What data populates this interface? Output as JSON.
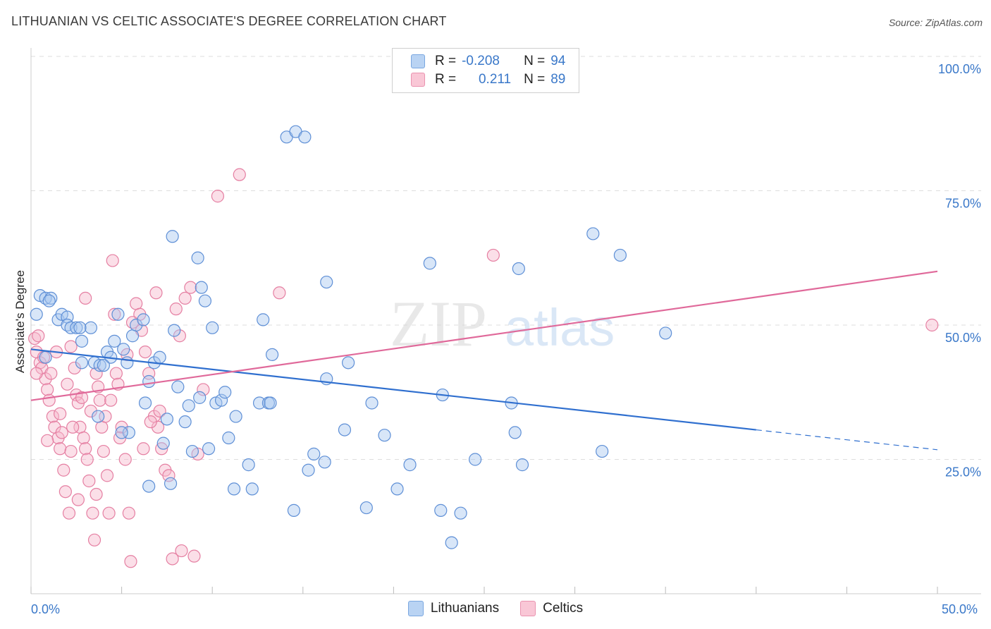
{
  "title": "LITHUANIAN VS CELTIC ASSOCIATE'S DEGREE CORRELATION CHART",
  "source": "Source: ZipAtlas.com",
  "watermark": {
    "zip": "ZIP",
    "atlas": "atlas"
  },
  "legend": {
    "rows": [
      {
        "r_label": "R =",
        "r_value": "-0.208",
        "n_label": "N =",
        "n_value": "94"
      },
      {
        "r_label": "R =",
        "r_value": "0.211",
        "n_label": "N =",
        "n_value": "89"
      }
    ]
  },
  "bottom_legend": {
    "series1": "Lithuanians",
    "series2": "Celtics"
  },
  "colors": {
    "blue_fill": "#a9c8f0",
    "blue_stroke": "#5e8fd6",
    "blue_line": "#2f6fcf",
    "pink_fill": "#f7b8cc",
    "pink_stroke": "#e57fa2",
    "pink_line": "#e0699a",
    "accent": "#3a78c9"
  },
  "chart_data": {
    "type": "scatter",
    "title": "LITHUANIAN VS CELTIC ASSOCIATE'S DEGREE CORRELATION CHART",
    "xlabel": "",
    "ylabel": "Associate's Degree",
    "xlim": [
      0,
      50
    ],
    "ylim": [
      0,
      100
    ],
    "x_tick_labels": [
      "0.0%",
      "50.0%"
    ],
    "y_tick_labels": [
      "100.0%",
      "75.0%",
      "50.0%",
      "25.0%"
    ],
    "y_ticks": [
      100,
      75,
      50,
      25
    ],
    "series": [
      {
        "name": "Lithuanians",
        "r": -0.208,
        "n": 94,
        "trend": {
          "x": [
            0,
            40,
            50
          ],
          "y": [
            45.5,
            30.5,
            26.8
          ],
          "solid_until": 40
        },
        "points": [
          [
            0.3,
            52
          ],
          [
            0.5,
            55.5
          ],
          [
            0.8,
            55
          ],
          [
            1.1,
            55
          ],
          [
            1.5,
            51
          ],
          [
            1.7,
            52
          ],
          [
            2,
            51.5
          ],
          [
            2,
            50
          ],
          [
            2.2,
            49.5
          ],
          [
            2.5,
            49.5
          ],
          [
            2.8,
            47
          ],
          [
            3.3,
            49.5
          ],
          [
            2.8,
            43
          ],
          [
            3.5,
            43
          ],
          [
            3.8,
            42.5
          ],
          [
            4.2,
            45
          ],
          [
            4.4,
            44
          ],
          [
            4.6,
            47
          ],
          [
            4.8,
            52
          ],
          [
            5.1,
            45.5
          ],
          [
            5.3,
            43
          ],
          [
            5.6,
            48
          ],
          [
            5.8,
            50
          ],
          [
            6.2,
            51
          ],
          [
            6.5,
            39.5
          ],
          [
            6.8,
            43
          ],
          [
            7.1,
            44
          ],
          [
            7.5,
            32.5
          ],
          [
            7.8,
            66.5
          ],
          [
            7.9,
            49
          ],
          [
            8.1,
            38.5
          ],
          [
            8.5,
            32
          ],
          [
            8.7,
            35
          ],
          [
            8.9,
            26.5
          ],
          [
            9.2,
            62.5
          ],
          [
            9.4,
            57
          ],
          [
            9.6,
            54.5
          ],
          [
            9.8,
            27
          ],
          [
            10,
            49.5
          ],
          [
            10.2,
            35.5
          ],
          [
            10.5,
            36
          ],
          [
            10.7,
            37.5
          ],
          [
            10.9,
            29
          ],
          [
            11.3,
            33
          ],
          [
            12,
            24
          ],
          [
            12.6,
            35.5
          ],
          [
            12.8,
            51
          ],
          [
            13.1,
            35.5
          ],
          [
            13.3,
            44.5
          ],
          [
            14.1,
            85
          ],
          [
            14.6,
            86
          ],
          [
            15.1,
            85
          ],
          [
            14.5,
            15.5
          ],
          [
            15.3,
            23
          ],
          [
            15.6,
            26
          ],
          [
            16.3,
            58
          ],
          [
            16.2,
            24.5
          ],
          [
            17.5,
            43
          ],
          [
            18.5,
            16
          ],
          [
            18.8,
            35.5
          ],
          [
            19.5,
            29.5
          ],
          [
            20.2,
            19.5
          ],
          [
            20.9,
            24
          ],
          [
            22,
            61.5
          ],
          [
            22.6,
            15.5
          ],
          [
            22.7,
            37
          ],
          [
            23.2,
            9.5
          ],
          [
            23.7,
            15
          ],
          [
            24.5,
            25
          ],
          [
            26.5,
            35.5
          ],
          [
            26.7,
            30
          ],
          [
            26.9,
            60.5
          ],
          [
            27.1,
            24
          ],
          [
            31,
            67
          ],
          [
            31.5,
            26.5
          ],
          [
            32.5,
            63
          ],
          [
            35,
            48.5
          ],
          [
            5.4,
            30
          ],
          [
            6.5,
            20
          ],
          [
            7.3,
            28
          ],
          [
            7.7,
            20.5
          ],
          [
            1,
            54.5
          ],
          [
            6.3,
            35.5
          ],
          [
            9.3,
            36.5
          ],
          [
            11.2,
            19.5
          ],
          [
            12.2,
            19.5
          ],
          [
            4,
            42.5
          ],
          [
            3.7,
            33
          ],
          [
            16.3,
            40
          ],
          [
            5,
            30
          ],
          [
            17.3,
            30.5
          ],
          [
            0.8,
            44
          ],
          [
            2.7,
            49.5
          ],
          [
            13.2,
            35.5
          ]
        ]
      },
      {
        "name": "Celtics",
        "r": 0.211,
        "n": 89,
        "trend": {
          "x": [
            0,
            50
          ],
          "y": [
            36,
            60
          ]
        },
        "points": [
          [
            0.2,
            47.5
          ],
          [
            0.3,
            45
          ],
          [
            0.5,
            43
          ],
          [
            0.6,
            42
          ],
          [
            0.8,
            40
          ],
          [
            0.9,
            38
          ],
          [
            1,
            36
          ],
          [
            1.2,
            33
          ],
          [
            1.3,
            31
          ],
          [
            1.5,
            29
          ],
          [
            1.6,
            27
          ],
          [
            1.8,
            23
          ],
          [
            1.9,
            19
          ],
          [
            2.1,
            15
          ],
          [
            2.2,
            46
          ],
          [
            2.4,
            42
          ],
          [
            2.5,
            37
          ],
          [
            2.6,
            35.5
          ],
          [
            2.7,
            31
          ],
          [
            2.9,
            29
          ],
          [
            3,
            27
          ],
          [
            3.1,
            25
          ],
          [
            3.2,
            21
          ],
          [
            3.4,
            15
          ],
          [
            3.5,
            10
          ],
          [
            3.6,
            41
          ],
          [
            3.7,
            38.5
          ],
          [
            3.8,
            36
          ],
          [
            3.9,
            31
          ],
          [
            4,
            26.5
          ],
          [
            4.2,
            22
          ],
          [
            4.3,
            15
          ],
          [
            4.5,
            62
          ],
          [
            4.7,
            41
          ],
          [
            4.8,
            39
          ],
          [
            5,
            31
          ],
          [
            5.2,
            25
          ],
          [
            5.4,
            15
          ],
          [
            5.5,
            6
          ],
          [
            5.8,
            54
          ],
          [
            6,
            52
          ],
          [
            6.1,
            49
          ],
          [
            6.3,
            45
          ],
          [
            6.5,
            41
          ],
          [
            6.8,
            33
          ],
          [
            7,
            31
          ],
          [
            7.2,
            27
          ],
          [
            7.4,
            23
          ],
          [
            7.8,
            6.5
          ],
          [
            8,
            53
          ],
          [
            8.2,
            48
          ],
          [
            8.5,
            55
          ],
          [
            8.8,
            57
          ],
          [
            9,
            7
          ],
          [
            9.5,
            38
          ],
          [
            10.3,
            74
          ],
          [
            11.5,
            78
          ],
          [
            13.7,
            56
          ],
          [
            25.5,
            63
          ],
          [
            49.7,
            50
          ],
          [
            0.4,
            48
          ],
          [
            0.7,
            44
          ],
          [
            1.1,
            41
          ],
          [
            1.4,
            45
          ],
          [
            1.7,
            30
          ],
          [
            2,
            39
          ],
          [
            2.3,
            31
          ],
          [
            2.8,
            36.5
          ],
          [
            3.3,
            34
          ],
          [
            3.6,
            18.5
          ],
          [
            4.1,
            33
          ],
          [
            4.4,
            36
          ],
          [
            4.9,
            29
          ],
          [
            5.6,
            50.5
          ],
          [
            6.2,
            27
          ],
          [
            6.6,
            32
          ],
          [
            7.6,
            22
          ],
          [
            8.3,
            8
          ],
          [
            9.2,
            26
          ],
          [
            1.6,
            33.5
          ],
          [
            2.6,
            17.5
          ],
          [
            0.3,
            41
          ],
          [
            3,
            55
          ],
          [
            4.6,
            52
          ],
          [
            5.3,
            44.5
          ],
          [
            6.9,
            56
          ],
          [
            7.1,
            34
          ],
          [
            0.9,
            28.5
          ],
          [
            2.2,
            26.5
          ]
        ]
      }
    ]
  }
}
